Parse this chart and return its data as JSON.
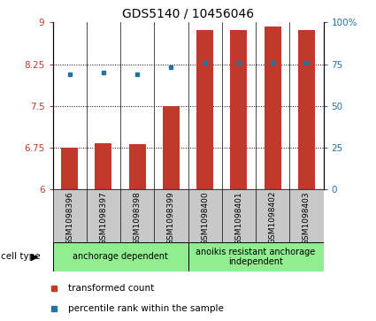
{
  "title": "GDS5140 / 10456046",
  "samples": [
    "GSM1098396",
    "GSM1098397",
    "GSM1098398",
    "GSM1098399",
    "GSM1098400",
    "GSM1098401",
    "GSM1098402",
    "GSM1098403"
  ],
  "bar_values": [
    6.75,
    6.83,
    6.81,
    7.5,
    8.87,
    8.87,
    8.93,
    8.87
  ],
  "dot_values": [
    8.07,
    8.1,
    8.07,
    8.19,
    8.28,
    8.28,
    8.28,
    8.28
  ],
  "bar_color": "#c0392b",
  "dot_color": "#2471a3",
  "ylim_left": [
    6,
    9
  ],
  "ylim_right": [
    0,
    100
  ],
  "yticks_left": [
    6,
    6.75,
    7.5,
    8.25,
    9
  ],
  "yticks_right": [
    0,
    25,
    50,
    75,
    100
  ],
  "ytick_labels_left": [
    "6",
    "6.75",
    "7.5",
    "8.25",
    "9"
  ],
  "ytick_labels_right": [
    "0",
    "25",
    "50",
    "75",
    "100%"
  ],
  "hgrid_values": [
    6.75,
    7.5,
    8.25
  ],
  "groups": [
    {
      "label": "anchorage dependent",
      "start": 0,
      "end": 4,
      "color": "#90EE90"
    },
    {
      "label": "anoikis resistant anchorage\nindependent",
      "start": 4,
      "end": 8,
      "color": "#90EE90"
    }
  ],
  "legend_items": [
    {
      "label": "transformed count",
      "color": "#c0392b"
    },
    {
      "label": "percentile rank within the sample",
      "color": "#2471a3"
    }
  ],
  "tick_bg_color": "#c8c8c8",
  "bar_baseline": 6,
  "bar_width": 0.5
}
